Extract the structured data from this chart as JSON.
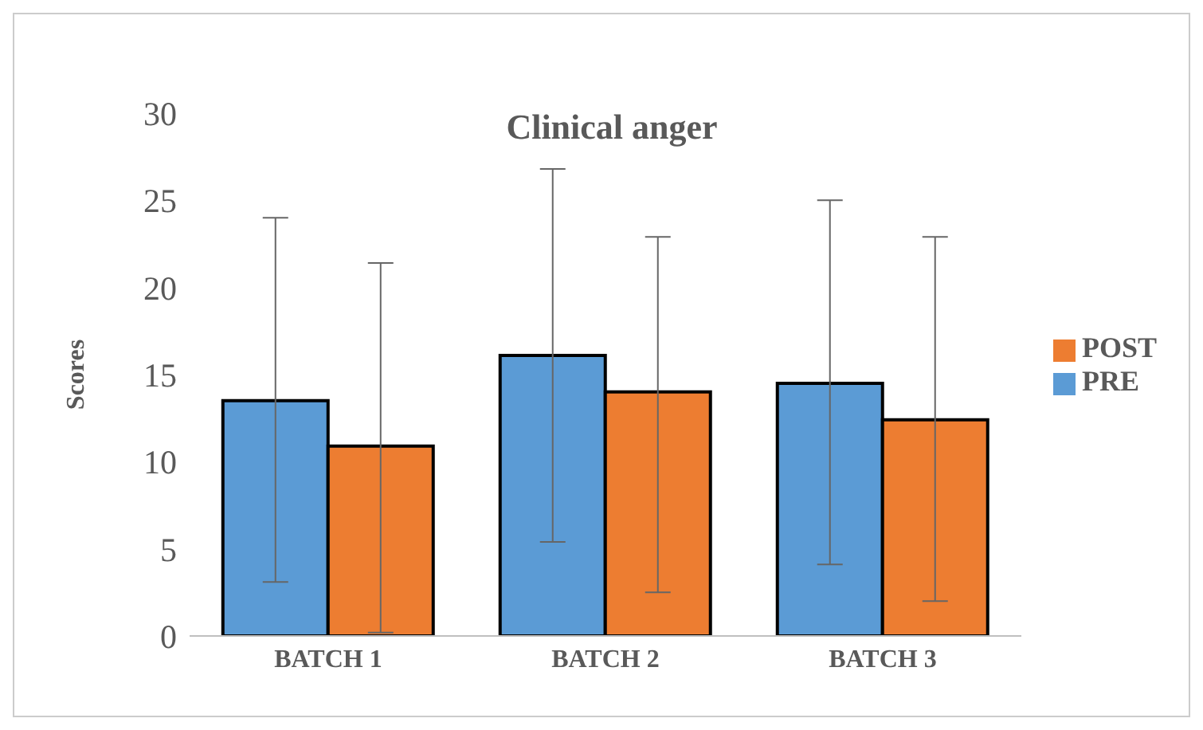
{
  "chart_data": {
    "type": "bar",
    "title": "Clinical anger",
    "ylabel": "Scores",
    "categories": [
      "BATCH 1",
      "BATCH 2",
      "BATCH 3"
    ],
    "series": [
      {
        "name": "PRE",
        "color": "#5b9bd5",
        "values": [
          13.5,
          16.1,
          14.5
        ],
        "errors": [
          [
            3.1,
            24
          ],
          [
            5.4,
            26.8
          ],
          [
            4.1,
            25
          ]
        ]
      },
      {
        "name": "POST",
        "color": "#ed7d31",
        "values": [
          10.9,
          14,
          12.4
        ],
        "errors": [
          [
            0.2,
            21.4
          ],
          [
            2.5,
            22.9
          ],
          [
            2,
            22.9
          ]
        ]
      }
    ],
    "ylim": [
      0,
      30
    ],
    "yticks": [
      0,
      5,
      10,
      15,
      20,
      25,
      30
    ],
    "grid": false,
    "legend": "right"
  }
}
